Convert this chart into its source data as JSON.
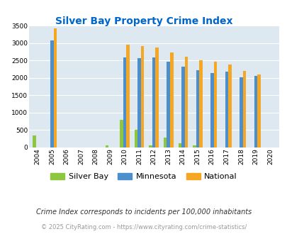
{
  "title": "Silver Bay Property Crime Index",
  "years": [
    2004,
    2005,
    2006,
    2007,
    2008,
    2009,
    2010,
    2011,
    2012,
    2013,
    2014,
    2015,
    2016,
    2017,
    2018,
    2019,
    2020
  ],
  "silver_bay": [
    350,
    0,
    0,
    0,
    0,
    50,
    790,
    500,
    50,
    290,
    120,
    50,
    0,
    0,
    0,
    0,
    0
  ],
  "minnesota": [
    0,
    3080,
    0,
    0,
    0,
    0,
    2580,
    2560,
    2580,
    2460,
    2320,
    2220,
    2130,
    2180,
    2010,
    2060,
    0
  ],
  "national": [
    0,
    3420,
    0,
    0,
    0,
    0,
    2960,
    2920,
    2870,
    2730,
    2600,
    2500,
    2470,
    2380,
    2200,
    2100,
    0
  ],
  "ylim": [
    0,
    3500
  ],
  "yticks": [
    0,
    500,
    1000,
    1500,
    2000,
    2500,
    3000,
    3500
  ],
  "bar_color_silver_bay": "#8dc63f",
  "bar_color_minnesota": "#4d8fcc",
  "bar_color_national": "#f5a623",
  "bg_color": "#dde8f0",
  "title_color": "#0066cc",
  "grid_color": "#ffffff",
  "footnote1": "Crime Index corresponds to incidents per 100,000 inhabitants",
  "footnote2": "© 2025 CityRating.com - https://www.cityrating.com/crime-statistics/",
  "footnote_color1": "#333333",
  "footnote_color2": "#999999"
}
